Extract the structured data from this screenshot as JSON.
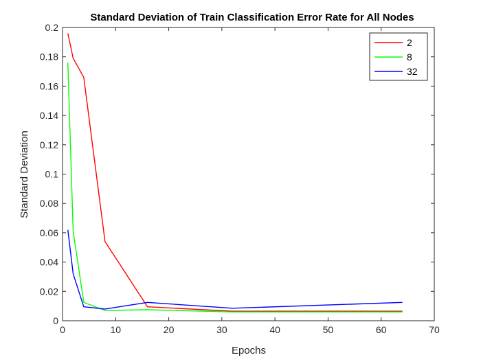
{
  "chart_data": {
    "type": "line",
    "title": "Standard Deviation of Train Classification Error Rate for All Nodes",
    "xlabel": "Epochs",
    "ylabel": "Standard Deviation",
    "xlim": [
      0,
      70
    ],
    "ylim": [
      0,
      0.2
    ],
    "xticks": [
      0,
      10,
      20,
      30,
      40,
      50,
      60,
      70
    ],
    "yticks": [
      0,
      0.02,
      0.04,
      0.06,
      0.08,
      0.1,
      0.12,
      0.14,
      0.16,
      0.18,
      0.2
    ],
    "ytick_labels": [
      "0",
      "0.02",
      "0.04",
      "0.06",
      "0.08",
      "0.1",
      "0.12",
      "0.14",
      "0.16",
      "0.18",
      "0.2"
    ],
    "grid": false,
    "legend": "top-right",
    "series": [
      {
        "name": "2",
        "color": "#ff0000",
        "x": [
          1,
          2,
          4,
          8,
          16,
          32,
          64
        ],
        "y": [
          0.196,
          0.179,
          0.166,
          0.054,
          0.0095,
          0.0065,
          0.0065
        ]
      },
      {
        "name": "8",
        "color": "#00ff00",
        "x": [
          1,
          2,
          4,
          8,
          16,
          32,
          64
        ],
        "y": [
          0.176,
          0.061,
          0.0125,
          0.007,
          0.0075,
          0.006,
          0.006
        ]
      },
      {
        "name": "32",
        "color": "#0000ff",
        "x": [
          1,
          2,
          4,
          8,
          16,
          32,
          64
        ],
        "y": [
          0.062,
          0.032,
          0.0095,
          0.008,
          0.0125,
          0.0085,
          0.0125
        ]
      }
    ]
  }
}
